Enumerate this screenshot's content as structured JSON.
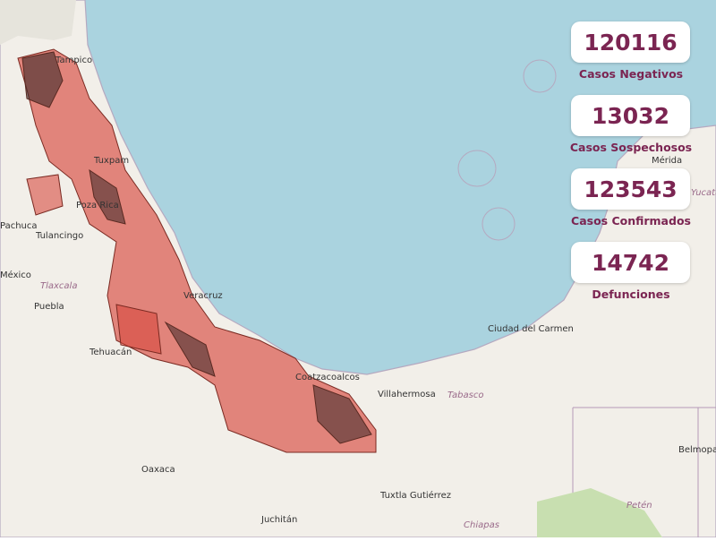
{
  "stats": [
    {
      "value": 120116,
      "label": "Casos Negativos"
    },
    {
      "value": 13032,
      "label": "Casos Sospechosos"
    },
    {
      "value": 123543,
      "label": "Casos Confirmados"
    },
    {
      "value": 14742,
      "label": "Defunciones"
    }
  ],
  "places": [
    "Tampico",
    "Tuxpam",
    "Poza Rica",
    "Pachuca",
    "Tulancingo",
    "México",
    "Puebla",
    "Tlaxcala",
    "Tehuacán",
    "Veracruz",
    "Oaxaca",
    "Juchitán",
    "Coatzacoalcos",
    "Villahermosa",
    "Tabasco",
    "Ciudad del Carmen",
    "Mérida",
    "Yucatán",
    "Tuxtla Gutiérrez",
    "Chiapas",
    "Petén",
    "Belmopan"
  ]
}
